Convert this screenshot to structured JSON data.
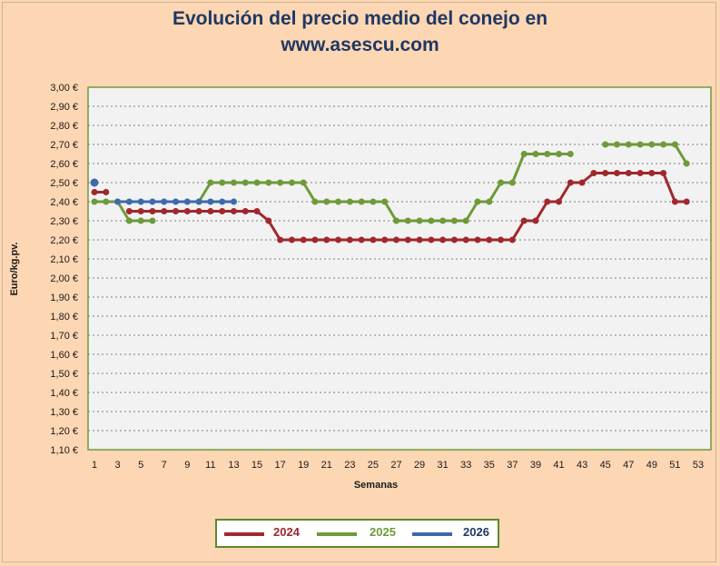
{
  "title": [
    "Evolución del precio medio del conejo en",
    "www.asescu.com"
  ],
  "chart_data": {
    "type": "line",
    "xlabel": "Semanas",
    "ylabel": "Euro/kg.pv.",
    "xlim": [
      1,
      53
    ],
    "ylim": [
      1.1,
      3.0
    ],
    "y_ticks": [
      "1,10 €",
      "1,20 €",
      "1,30 €",
      "1,40 €",
      "1,50 €",
      "1,60 €",
      "1,70 €",
      "1,80 €",
      "1,90 €",
      "2,00 €",
      "2,10 €",
      "2,20 €",
      "2,30 €",
      "2,40 €",
      "2,50 €",
      "2,60 €",
      "2,70 €",
      "2,80 €",
      "2,90 €",
      "3,00 €"
    ],
    "x_ticks": [
      "1",
      "3",
      "5",
      "7",
      "9",
      "11",
      "13",
      "15",
      "17",
      "19",
      "21",
      "23",
      "25",
      "27",
      "29",
      "31",
      "33",
      "35",
      "37",
      "39",
      "41",
      "43",
      "45",
      "47",
      "49",
      "51",
      "53"
    ],
    "grid": true,
    "legend": "bottom",
    "series": [
      {
        "name": "2024",
        "color": "#a0282c",
        "values": [
          2.45,
          2.45,
          null,
          2.35,
          2.35,
          2.35,
          2.35,
          2.35,
          2.35,
          2.35,
          2.35,
          2.35,
          2.35,
          2.35,
          2.35,
          2.3,
          2.2,
          2.2,
          2.2,
          2.2,
          2.2,
          2.2,
          2.2,
          2.2,
          2.2,
          2.2,
          2.2,
          2.2,
          2.2,
          2.2,
          2.2,
          2.2,
          2.2,
          2.2,
          2.2,
          2.2,
          2.2,
          2.3,
          2.3,
          2.4,
          2.4,
          2.5,
          2.5,
          2.55,
          2.55,
          2.55,
          2.55,
          2.55,
          2.55,
          2.55,
          2.4,
          2.4
        ]
      },
      {
        "name": "2025",
        "color": "#6e9a3a",
        "values": [
          2.4,
          2.4,
          2.4,
          2.3,
          2.3,
          2.3,
          null,
          null,
          null,
          2.4,
          2.5,
          2.5,
          2.5,
          2.5,
          2.5,
          2.5,
          2.5,
          2.5,
          2.5,
          2.4,
          2.4,
          2.4,
          2.4,
          2.4,
          2.4,
          2.4,
          2.3,
          2.3,
          2.3,
          2.3,
          2.3,
          2.3,
          2.3,
          2.4,
          2.4,
          2.5,
          2.5,
          2.65,
          2.65,
          2.65,
          2.65,
          2.65,
          null,
          null,
          2.7,
          2.7,
          2.7,
          2.7,
          2.7,
          2.7,
          2.7,
          2.6
        ]
      },
      {
        "name": "2026",
        "color": "#3d6aab",
        "values": [
          2.5,
          null,
          2.4,
          2.4,
          2.4,
          2.4,
          2.4,
          2.4,
          2.4,
          2.4,
          2.4,
          2.4,
          2.4
        ]
      }
    ]
  }
}
